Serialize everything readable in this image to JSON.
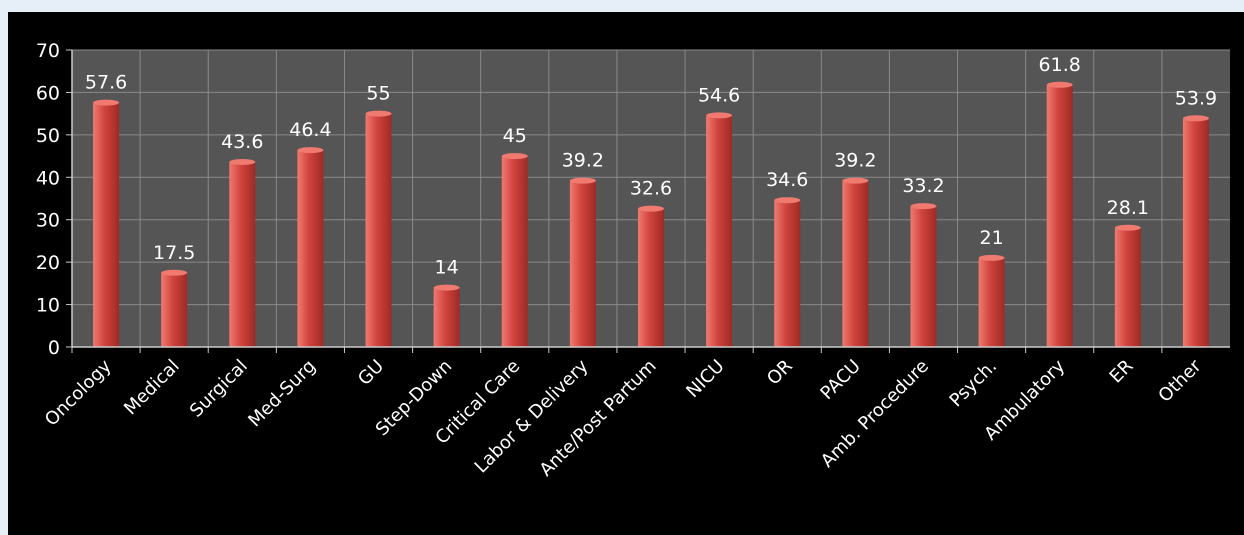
{
  "chart_data": {
    "type": "bar",
    "categories": [
      "Oncology",
      "Medical",
      "Surgical",
      "Med-Surg",
      "GU",
      "Step-Down",
      "Critical Care",
      "Labor & Delivery",
      "Ante/Post Partum",
      "NICU",
      "OR",
      "PACU",
      "Amb. Procedure",
      "Psych.",
      "Ambulatory",
      "ER",
      "Other"
    ],
    "values": [
      57.6,
      17.5,
      43.6,
      46.4,
      55,
      14,
      45,
      39.2,
      32.6,
      54.6,
      34.6,
      39.2,
      33.2,
      21,
      61.8,
      28.1,
      53.9
    ],
    "value_labels": [
      "57.6",
      "17.5",
      "43.6",
      "46.4",
      "55",
      "14",
      "45",
      "39.2",
      "32.6",
      "54.6",
      "34.6",
      "39.2",
      "33.2",
      "21",
      "61.8",
      "28.1",
      "53.9"
    ],
    "y_ticks": [
      "0",
      "10",
      "20",
      "30",
      "40",
      "50",
      "60",
      "70"
    ],
    "ylim": [
      0,
      70
    ],
    "title": "",
    "xlabel": "",
    "ylabel": "",
    "grid": true,
    "legend": "none",
    "colors": {
      "background": "#000000",
      "plot_area": "#555555",
      "grid": "#8a8a8a",
      "bar": "#d0433d",
      "bar_highlight": "#f07a70",
      "text": "#ffffff"
    }
  }
}
